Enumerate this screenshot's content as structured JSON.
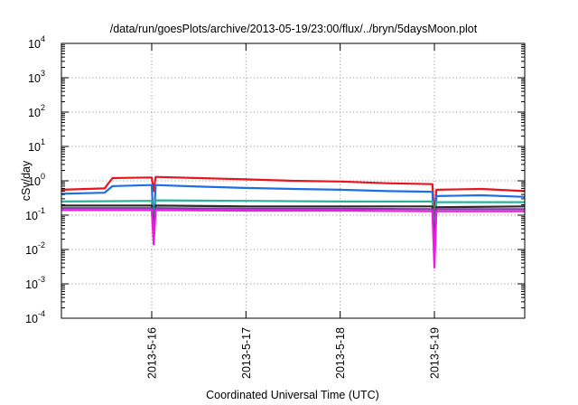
{
  "chart_data": {
    "type": "line",
    "title": "/data/run/goesPlots/archive/2013-05-19/23:00/flux/../bryn/5daysMoon.plot",
    "xlabel": "Coordinated Universal Time (UTC)",
    "ylabel": "cSv/day",
    "y_scale": "log",
    "ylim": [
      0.0001,
      10000
    ],
    "y_ticks": [
      {
        "value": 0.0001,
        "base": "10",
        "exp": "-4"
      },
      {
        "value": 0.001,
        "base": "10",
        "exp": "-3"
      },
      {
        "value": 0.01,
        "base": "10",
        "exp": "-2"
      },
      {
        "value": 0.1,
        "base": "10",
        "exp": "-1"
      },
      {
        "value": 1,
        "base": "10",
        "exp": "0"
      },
      {
        "value": 10,
        "base": "10",
        "exp": "1"
      },
      {
        "value": 100,
        "base": "10",
        "exp": "2"
      },
      {
        "value": 1000,
        "base": "10",
        "exp": "3"
      },
      {
        "value": 10000,
        "base": "10",
        "exp": "4"
      }
    ],
    "x_range": [
      "2013-05-15 01:00",
      "2013-05-19 23:00"
    ],
    "x_ticks": [
      "2013-5-16",
      "2013-5-17",
      "2013-5-18",
      "2013-5-19"
    ],
    "grid": true,
    "series": [
      {
        "color": "#e8141e",
        "values": [
          [
            "2013-05-15 01:00",
            0.55
          ],
          [
            "2013-05-15 12:00",
            0.6
          ],
          [
            "2013-05-15 14:00",
            1.2
          ],
          [
            "2013-05-16 00:00",
            1.25
          ],
          [
            "2013-05-16 00:30",
            0.5
          ],
          [
            "2013-05-16 01:00",
            1.3
          ],
          [
            "2013-05-16 12:00",
            1.2
          ],
          [
            "2013-05-17 00:00",
            1.1
          ],
          [
            "2013-05-17 12:00",
            1.0
          ],
          [
            "2013-05-18 00:00",
            0.95
          ],
          [
            "2013-05-18 12:00",
            0.85
          ],
          [
            "2013-05-18 23:30",
            0.8
          ],
          [
            "2013-05-19 00:00",
            0.08
          ],
          [
            "2013-05-19 00:30",
            0.55
          ],
          [
            "2013-05-19 12:00",
            0.58
          ],
          [
            "2013-05-19 23:00",
            0.5
          ]
        ]
      },
      {
        "color": "#1e6ee6",
        "values": [
          [
            "2013-05-15 01:00",
            0.42
          ],
          [
            "2013-05-15 12:00",
            0.45
          ],
          [
            "2013-05-15 14:00",
            0.7
          ],
          [
            "2013-05-16 00:00",
            0.75
          ],
          [
            "2013-05-16 00:30",
            0.04
          ],
          [
            "2013-05-16 01:00",
            0.75
          ],
          [
            "2013-05-16 12:00",
            0.68
          ],
          [
            "2013-05-17 00:00",
            0.62
          ],
          [
            "2013-05-17 12:00",
            0.58
          ],
          [
            "2013-05-18 00:00",
            0.55
          ],
          [
            "2013-05-18 12:00",
            0.5
          ],
          [
            "2013-05-18 23:30",
            0.48
          ],
          [
            "2013-05-19 00:00",
            0.01
          ],
          [
            "2013-05-19 00:30",
            0.36
          ],
          [
            "2013-05-19 12:00",
            0.38
          ],
          [
            "2013-05-19 23:00",
            0.34
          ]
        ]
      },
      {
        "color": "#27b49a",
        "values": [
          [
            "2013-05-15 01:00",
            0.25
          ],
          [
            "2013-05-16 00:00",
            0.26
          ],
          [
            "2013-05-16 00:30",
            0.05
          ],
          [
            "2013-05-16 01:00",
            0.27
          ],
          [
            "2013-05-17 00:00",
            0.26
          ],
          [
            "2013-05-18 00:00",
            0.25
          ],
          [
            "2013-05-18 23:30",
            0.25
          ],
          [
            "2013-05-19 00:00",
            0.03
          ],
          [
            "2013-05-19 00:30",
            0.24
          ],
          [
            "2013-05-19 23:00",
            0.24
          ]
        ]
      },
      {
        "color": "#2e2a2a",
        "values": [
          [
            "2013-05-15 01:00",
            0.19
          ],
          [
            "2013-05-16 00:00",
            0.19
          ],
          [
            "2013-05-16 00:30",
            0.04
          ],
          [
            "2013-05-16 01:00",
            0.19
          ],
          [
            "2013-05-17 00:00",
            0.18
          ],
          [
            "2013-05-18 00:00",
            0.18
          ],
          [
            "2013-05-18 23:30",
            0.18
          ],
          [
            "2013-05-19 00:00",
            0.012
          ],
          [
            "2013-05-19 00:30",
            0.17
          ],
          [
            "2013-05-19 23:00",
            0.18
          ]
        ]
      },
      {
        "color": "#7b3fa0",
        "values": [
          [
            "2013-05-15 01:00",
            0.16
          ],
          [
            "2013-05-16 00:00",
            0.16
          ],
          [
            "2013-05-16 00:30",
            0.03
          ],
          [
            "2013-05-16 01:00",
            0.16
          ],
          [
            "2013-05-17 00:00",
            0.155
          ],
          [
            "2013-05-18 00:00",
            0.155
          ],
          [
            "2013-05-18 23:30",
            0.15
          ],
          [
            "2013-05-19 00:00",
            0.008
          ],
          [
            "2013-05-19 00:30",
            0.15
          ],
          [
            "2013-05-19 23:00",
            0.15
          ]
        ]
      },
      {
        "color": "#f018e6",
        "values": [
          [
            "2013-05-15 01:00",
            0.14
          ],
          [
            "2013-05-16 00:00",
            0.14
          ],
          [
            "2013-05-16 00:30",
            0.014
          ],
          [
            "2013-05-16 01:00",
            0.14
          ],
          [
            "2013-05-17 00:00",
            0.135
          ],
          [
            "2013-05-18 00:00",
            0.135
          ],
          [
            "2013-05-18 23:30",
            0.13
          ],
          [
            "2013-05-19 00:00",
            0.003
          ],
          [
            "2013-05-19 00:30",
            0.13
          ],
          [
            "2013-05-19 23:00",
            0.13
          ]
        ]
      }
    ]
  }
}
